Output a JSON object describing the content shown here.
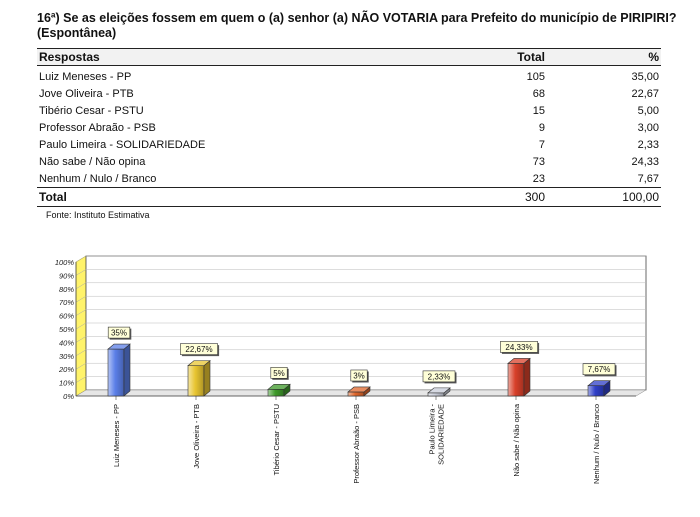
{
  "question": "16ª) Se as eleições fossem em quem o (a) senhor (a) NÃO VOTARIA para Prefeito do município de PIRIPIRI?  (Espontânea)",
  "table": {
    "headers": {
      "answer": "Respostas",
      "total": "Total",
      "percent": "%"
    },
    "rows": [
      {
        "answer": "Luiz Meneses - PP",
        "total": "105",
        "percent": "35,00"
      },
      {
        "answer": "Jove Oliveira - PTB",
        "total": "68",
        "percent": "22,67"
      },
      {
        "answer": "Tibério Cesar - PSTU",
        "total": "15",
        "percent": "5,00"
      },
      {
        "answer": "Professor Abraão - PSB",
        "total": "9",
        "percent": "3,00"
      },
      {
        "answer": "Paulo Limeira - SOLIDARIEDADE",
        "total": "7",
        "percent": "2,33"
      },
      {
        "answer": "Não sabe / Não opina",
        "total": "73",
        "percent": "24,33"
      },
      {
        "answer": "Nenhum / Nulo / Branco",
        "total": "23",
        "percent": "7,67"
      }
    ],
    "total": {
      "label": "Total",
      "total": "300",
      "percent": "100,00"
    }
  },
  "source": "Fonte: Instituto Estimativa",
  "chart_data": {
    "type": "bar",
    "categories": [
      "Luiz Meneses - PP",
      "Jove Oliveira - PTB",
      "Tibério Cesar - PSTU",
      "Professor Abraão - PSB",
      "Paulo Limeira - SOLIDARIEDADE",
      "Não sabe / Não opina",
      "Nenhum / Nulo / Branco"
    ],
    "category_label_lines": [
      [
        "Luiz Meneses - PP"
      ],
      [
        "Jove Oliveira - PTB"
      ],
      [
        "Tibério Cesar - PSTU"
      ],
      [
        "Professor Abraão - PSB"
      ],
      [
        "Paulo Limeira -",
        "SOLIDARIEDADE"
      ],
      [
        "Não sabe / Não opina"
      ],
      [
        "Nenhum / Nulo / Branco"
      ]
    ],
    "values": [
      35,
      22.67,
      5,
      3,
      2.33,
      24.33,
      7.67
    ],
    "data_labels": [
      "35%",
      "22,67%",
      "5%",
      "3%",
      "2,33%",
      "24,33%",
      "7,67%"
    ],
    "colors": [
      "#5b7fe8",
      "#e8c531",
      "#3e9a2a",
      "#e0662a",
      "#c8ccd8",
      "#d8402a",
      "#2f3fc8"
    ],
    "yticks": [
      "0%",
      "10%",
      "20%",
      "30%",
      "40%",
      "50%",
      "60%",
      "70%",
      "80%",
      "90%",
      "100%"
    ],
    "ylim": [
      0,
      100
    ],
    "grid": true,
    "style": "3d"
  }
}
